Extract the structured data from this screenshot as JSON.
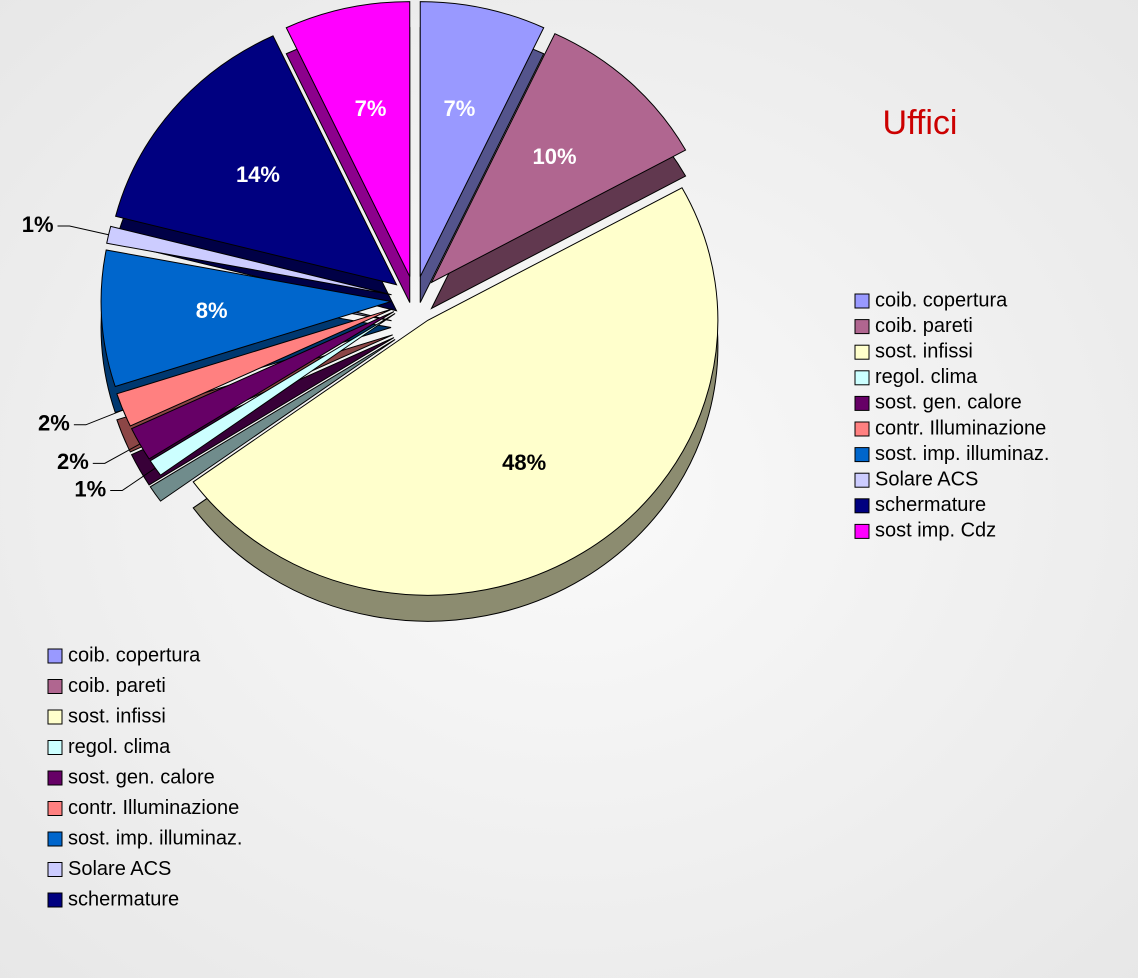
{
  "chart_data": {
    "type": "pie",
    "title": "Uffici",
    "categories": [
      "coib. copertura",
      "coib. pareti",
      "sost. infissi",
      "regol. clima",
      "sost. gen. calore",
      "contr. Illuminazione",
      "sost. imp. illuminaz.",
      "Solare ACS",
      "schermature",
      "sost imp. Cdz"
    ],
    "values": [
      7,
      10,
      48,
      1,
      2,
      2,
      8,
      1,
      14,
      7
    ],
    "value_labels": [
      "7%",
      "10%",
      "48%",
      "1%",
      "2%",
      "2%",
      "8%",
      "1%",
      "14%",
      "7%"
    ],
    "colors": [
      "#9999ff",
      "#b06690",
      "#ffffcc",
      "#ccffff",
      "#660066",
      "#ff8080",
      "#0066cc",
      "#ccccff",
      "#000080",
      "#ff00ff"
    ],
    "legend": "right"
  }
}
